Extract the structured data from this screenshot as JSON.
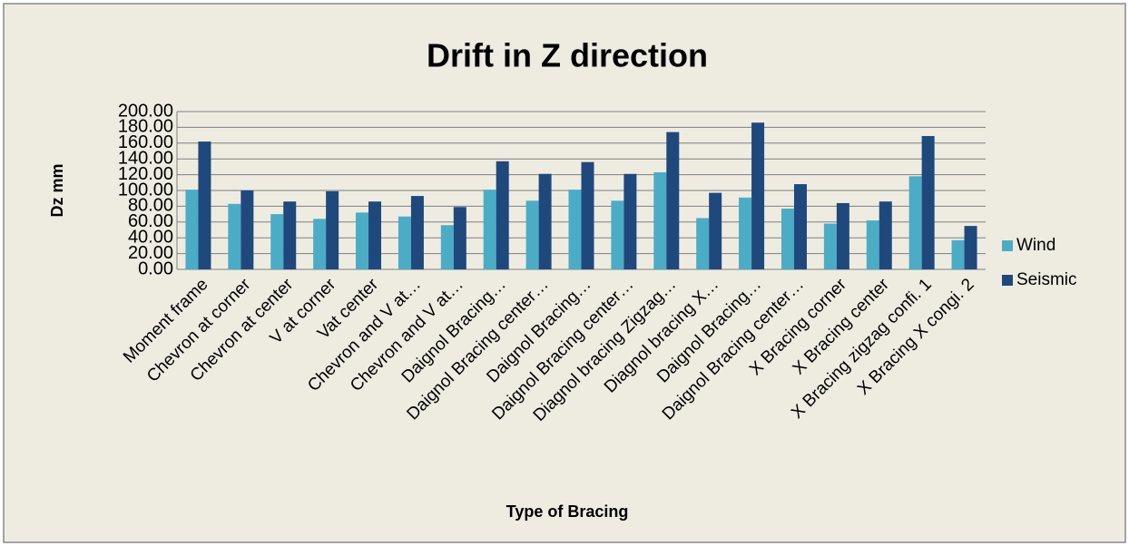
{
  "chart_data": {
    "type": "bar",
    "title": "Drift in Z direction",
    "y_label": "Dz mm",
    "x_label": "Type of Bracing",
    "categories": [
      "Moment frame",
      "Chevron at corner",
      "Chevron at center",
      "V at corner",
      "Vat center",
      "Chevron and V at…",
      "Chevron and V at…",
      "Daignol Bracing…",
      "Daignol Bracing center…",
      "Daignol Bracing…",
      "Daignol Bracing center…",
      "Diagnol bracing Zigzag…",
      "Diagnol bracing X…",
      "Daignol Bracing…",
      "Daignol Bracing center…",
      "X Bracing corner",
      "X Bracing center",
      "X Bracing zigzag confi. 1",
      "X Bracing X congi. 2"
    ],
    "series": [
      {
        "name": "Wind",
        "color": "#4bacc6",
        "values": [
          101,
          83,
          70,
          64,
          72,
          67,
          56,
          101,
          87,
          101,
          87,
          123,
          65,
          91,
          77,
          58,
          62,
          118,
          37
        ]
      },
      {
        "name": "Seismic",
        "color": "#1f497d",
        "values": [
          162,
          100,
          86,
          99,
          86,
          93,
          79,
          137,
          121,
          136,
          121,
          174,
          97,
          186,
          108,
          84,
          86,
          169,
          55
        ]
      }
    ],
    "ylim": [
      0,
      200
    ],
    "yticks": [
      {
        "value": 0,
        "label": "0.00"
      },
      {
        "value": 20,
        "label": "20.00"
      },
      {
        "value": 40,
        "label": "40.00"
      },
      {
        "value": 60,
        "label": "60.00"
      },
      {
        "value": 80,
        "label": "80.00"
      },
      {
        "value": 100,
        "label": "100.00"
      },
      {
        "value": 120,
        "label": "120.00"
      },
      {
        "value": 140,
        "label": "140.00"
      },
      {
        "value": 160,
        "label": "160.00"
      },
      {
        "value": 180,
        "label": "180.00"
      },
      {
        "value": 200,
        "label": "200.00"
      }
    ],
    "grid": true,
    "legend": "right"
  }
}
